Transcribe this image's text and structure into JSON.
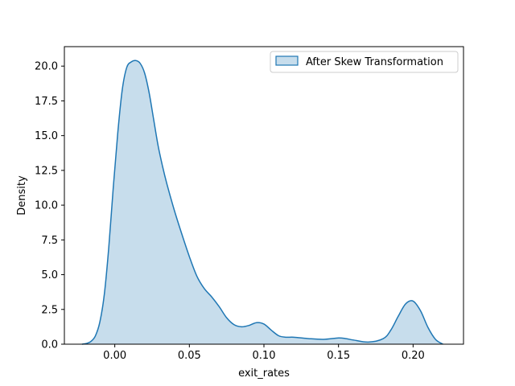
{
  "chart_data": {
    "type": "area",
    "title": "",
    "xlabel": "exit_rates",
    "ylabel": "Density",
    "xlim": [
      -0.0338,
      0.2338
    ],
    "ylim": [
      0,
      21.4
    ],
    "xticks": [
      0.0,
      0.05,
      0.1,
      0.15,
      0.2
    ],
    "xtick_labels": [
      "0.00",
      "0.05",
      "0.10",
      "0.15",
      "0.20"
    ],
    "yticks": [
      0.0,
      2.5,
      5.0,
      7.5,
      10.0,
      12.5,
      15.0,
      17.5,
      20.0
    ],
    "ytick_labels": [
      "0.0",
      "2.5",
      "5.0",
      "7.5",
      "10.0",
      "12.5",
      "15.0",
      "17.5",
      "20.0"
    ],
    "grid": false,
    "legend_position": "top-right",
    "colors": {
      "line": "#1f77b4",
      "fill": "#1f77b4",
      "fill_opacity": 0.25
    },
    "series": [
      {
        "name": "After Skew Transformation",
        "x": [
          -0.022,
          -0.019,
          -0.016,
          -0.013,
          -0.01,
          -0.007,
          -0.004,
          -0.001,
          0.002,
          0.005,
          0.008,
          0.011,
          0.014,
          0.017,
          0.02,
          0.023,
          0.026,
          0.029,
          0.032,
          0.035,
          0.04,
          0.045,
          0.05,
          0.055,
          0.06,
          0.065,
          0.07,
          0.075,
          0.08,
          0.085,
          0.09,
          0.095,
          0.1,
          0.105,
          0.11,
          0.115,
          0.12,
          0.13,
          0.14,
          0.15,
          0.155,
          0.16,
          0.17,
          0.18,
          0.185,
          0.19,
          0.195,
          0.2,
          0.205,
          0.21,
          0.215,
          0.22
        ],
        "y": [
          0.0,
          0.05,
          0.2,
          0.6,
          1.6,
          3.6,
          7.0,
          11.3,
          15.2,
          18.3,
          19.9,
          20.3,
          20.4,
          20.2,
          19.5,
          18.1,
          16.2,
          14.3,
          12.8,
          11.5,
          9.6,
          7.9,
          6.3,
          4.9,
          4.0,
          3.4,
          2.7,
          1.9,
          1.4,
          1.25,
          1.35,
          1.55,
          1.45,
          1.0,
          0.6,
          0.5,
          0.5,
          0.4,
          0.35,
          0.45,
          0.4,
          0.3,
          0.15,
          0.4,
          1.0,
          2.0,
          2.9,
          3.1,
          2.4,
          1.2,
          0.35,
          0.0
        ]
      }
    ]
  }
}
